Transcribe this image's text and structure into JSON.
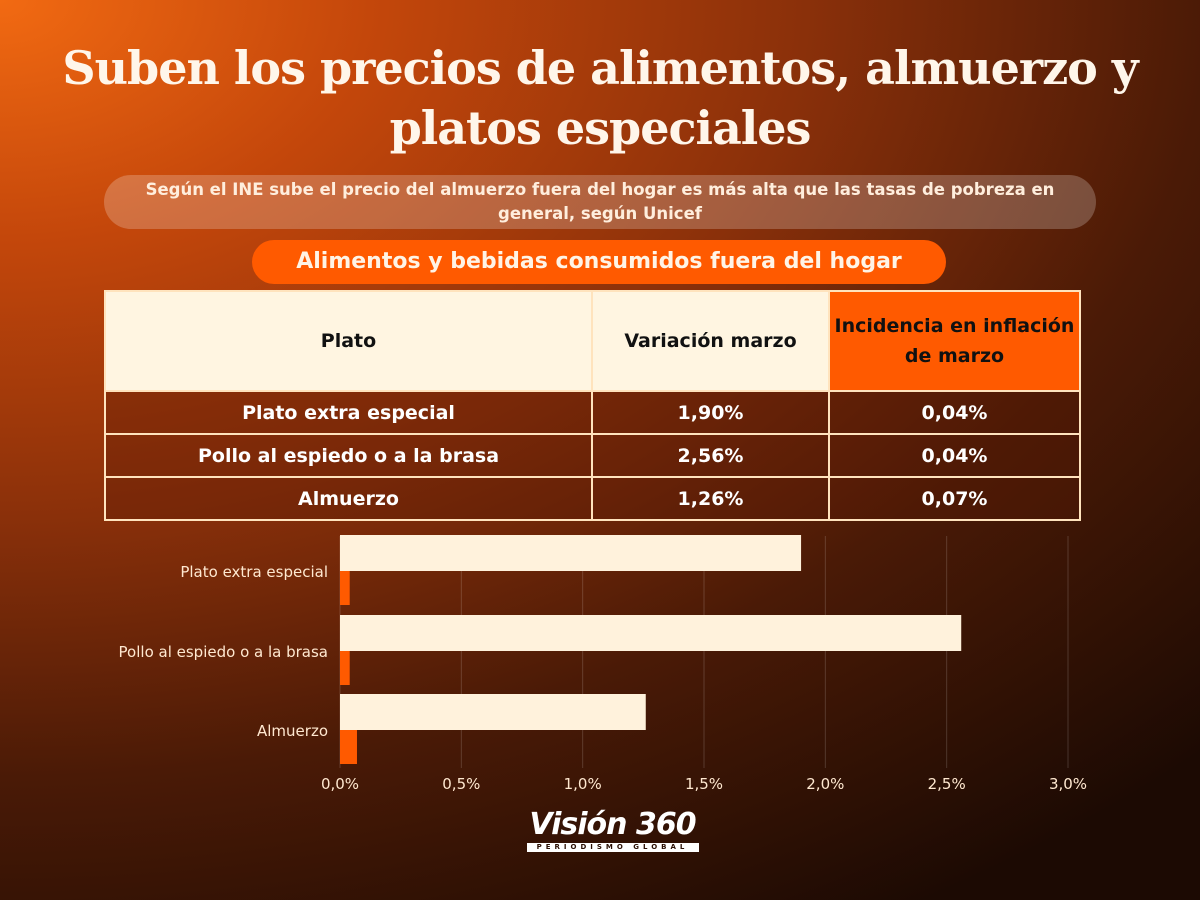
{
  "header": {
    "title": "Suben los precios de alimentos, almuerzo y platos especiales",
    "subtitle": "Según el INE sube el precio del almuerzo fuera del hogar es más alta que las tasas de pobreza en general, según Unicef",
    "section": "Alimentos y bebidas consumidos fuera del hogar"
  },
  "table": {
    "headers": [
      "Plato",
      "Variación marzo",
      "Incidencia en inflación de marzo"
    ],
    "rows": [
      [
        "Plato extra especial",
        "1,90%",
        "0,04%"
      ],
      [
        "Pollo al espiedo o a la brasa",
        "2,56%",
        "0,04%"
      ],
      [
        "Almuerzo",
        "1,26%",
        "0,07%"
      ]
    ]
  },
  "chart_data": {
    "type": "bar",
    "orientation": "horizontal",
    "categories": [
      "Plato extra especial",
      "Pollo al espiedo o a la brasa",
      "Almuerzo"
    ],
    "series": [
      {
        "name": "Variación marzo",
        "values": [
          1.9,
          2.56,
          1.26
        ],
        "color": "#fff2dc"
      },
      {
        "name": "Incidencia en inflación de marzo",
        "values": [
          0.04,
          0.04,
          0.07
        ],
        "color": "#ff5a00"
      }
    ],
    "xlim": [
      0,
      3.0
    ],
    "xticks": [
      "0,0%",
      "0,5%",
      "1,0%",
      "1,5%",
      "2,0%",
      "2,5%",
      "3,0%"
    ],
    "xtick_values": [
      0,
      0.5,
      1.0,
      1.5,
      2.0,
      2.5,
      3.0
    ],
    "grid": true,
    "legend": "none"
  },
  "logo": {
    "main": "Visión 360",
    "sub": "PERIODISMO GLOBAL"
  }
}
